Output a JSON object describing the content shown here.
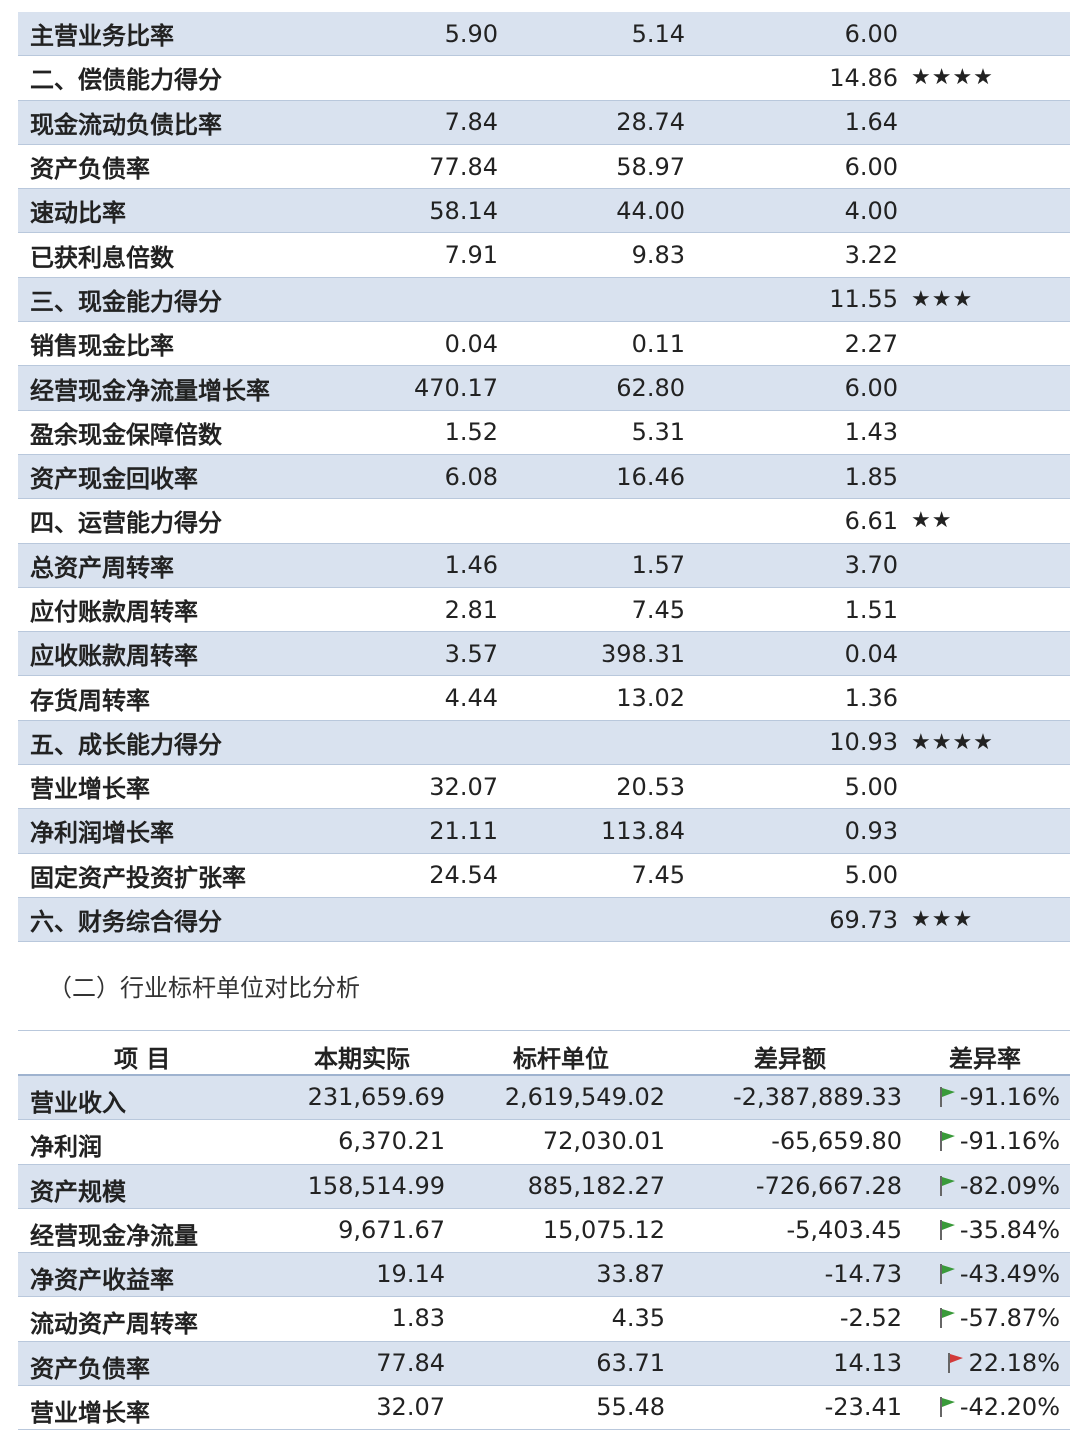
{
  "indicators": [
    {
      "name": "主营业务比率",
      "v1": "5.90",
      "v2": "5.14",
      "score": "6.00",
      "stars": "",
      "shade": true
    },
    {
      "name": "二、偿债能力得分",
      "v1": "",
      "v2": "",
      "score": "14.86",
      "stars": "★★★★",
      "shade": false
    },
    {
      "name": "现金流动负债比率",
      "v1": "7.84",
      "v2": "28.74",
      "score": "1.64",
      "stars": "",
      "shade": true
    },
    {
      "name": "资产负债率",
      "v1": "77.84",
      "v2": "58.97",
      "score": "6.00",
      "stars": "",
      "shade": false
    },
    {
      "name": "速动比率",
      "v1": "58.14",
      "v2": "44.00",
      "score": "4.00",
      "stars": "",
      "shade": true
    },
    {
      "name": "已获利息倍数",
      "v1": "7.91",
      "v2": "9.83",
      "score": "3.22",
      "stars": "",
      "shade": false
    },
    {
      "name": "三、现金能力得分",
      "v1": "",
      "v2": "",
      "score": "11.55",
      "stars": "★★★",
      "shade": true
    },
    {
      "name": "销售现金比率",
      "v1": "0.04",
      "v2": "0.11",
      "score": "2.27",
      "stars": "",
      "shade": false
    },
    {
      "name": "经营现金净流量增长率",
      "v1": "470.17",
      "v2": "62.80",
      "score": "6.00",
      "stars": "",
      "shade": true
    },
    {
      "name": "盈余现金保障倍数",
      "v1": "1.52",
      "v2": "5.31",
      "score": "1.43",
      "stars": "",
      "shade": false
    },
    {
      "name": "资产现金回收率",
      "v1": "6.08",
      "v2": "16.46",
      "score": "1.85",
      "stars": "",
      "shade": true
    },
    {
      "name": "四、运营能力得分",
      "v1": "",
      "v2": "",
      "score": "6.61",
      "stars": "★★",
      "shade": false
    },
    {
      "name": "总资产周转率",
      "v1": "1.46",
      "v2": "1.57",
      "score": "3.70",
      "stars": "",
      "shade": true
    },
    {
      "name": "应付账款周转率",
      "v1": "2.81",
      "v2": "7.45",
      "score": "1.51",
      "stars": "",
      "shade": false
    },
    {
      "name": "应收账款周转率",
      "v1": "3.57",
      "v2": "398.31",
      "score": "0.04",
      "stars": "",
      "shade": true
    },
    {
      "name": "存货周转率",
      "v1": "4.44",
      "v2": "13.02",
      "score": "1.36",
      "stars": "",
      "shade": false
    },
    {
      "name": "五、成长能力得分",
      "v1": "",
      "v2": "",
      "score": "10.93",
      "stars": "★★★★",
      "shade": true
    },
    {
      "name": "营业增长率",
      "v1": "32.07",
      "v2": "20.53",
      "score": "5.00",
      "stars": "",
      "shade": false
    },
    {
      "name": "净利润增长率",
      "v1": "21.11",
      "v2": "113.84",
      "score": "0.93",
      "stars": "",
      "shade": true
    },
    {
      "name": "固定资产投资扩张率",
      "v1": "24.54",
      "v2": "7.45",
      "score": "5.00",
      "stars": "",
      "shade": false
    },
    {
      "name": "六、财务综合得分",
      "v1": "",
      "v2": "",
      "score": "69.73",
      "stars": "★★★",
      "shade": true
    }
  ],
  "section_title": "（二）行业标杆单位对比分析",
  "benchmark": {
    "headers": {
      "item": "项  目",
      "actual": "本期实际",
      "bench": "标杆单位",
      "diff": "差异额",
      "rate": "差异率"
    },
    "rows": [
      {
        "name": "营业收入",
        "actual": "231,659.69",
        "bench": "2,619,549.02",
        "diff": "-2,387,889.33",
        "rate": "-91.16%",
        "flag": "green-flag-icon",
        "shade": true
      },
      {
        "name": "净利润",
        "actual": "6,370.21",
        "bench": "72,030.01",
        "diff": "-65,659.80",
        "rate": "-91.16%",
        "flag": "green-flag-icon",
        "shade": false
      },
      {
        "name": "资产规模",
        "actual": "158,514.99",
        "bench": "885,182.27",
        "diff": "-726,667.28",
        "rate": "-82.09%",
        "flag": "green-flag-icon",
        "shade": true
      },
      {
        "name": "经营现金净流量",
        "actual": "9,671.67",
        "bench": "15,075.12",
        "diff": "-5,403.45",
        "rate": "-35.84%",
        "flag": "green-flag-icon",
        "shade": false
      },
      {
        "name": "净资产收益率",
        "actual": "19.14",
        "bench": "33.87",
        "diff": "-14.73",
        "rate": "-43.49%",
        "flag": "green-flag-icon",
        "shade": true
      },
      {
        "name": "流动资产周转率",
        "actual": "1.83",
        "bench": "4.35",
        "diff": "-2.52",
        "rate": "-57.87%",
        "flag": "green-flag-icon",
        "shade": false
      },
      {
        "name": "资产负债率",
        "actual": "77.84",
        "bench": "63.71",
        "diff": "14.13",
        "rate": "22.18%",
        "flag": "red-flag-icon",
        "shade": true
      },
      {
        "name": "营业增长率",
        "actual": "32.07",
        "bench": "55.48",
        "diff": "-23.41",
        "rate": "-42.20%",
        "flag": "green-flag-icon",
        "shade": false
      }
    ]
  },
  "colors": {
    "shade": "#d9e2ef",
    "green_flag": "#3a9a3a",
    "red_flag": "#d23a3a"
  }
}
